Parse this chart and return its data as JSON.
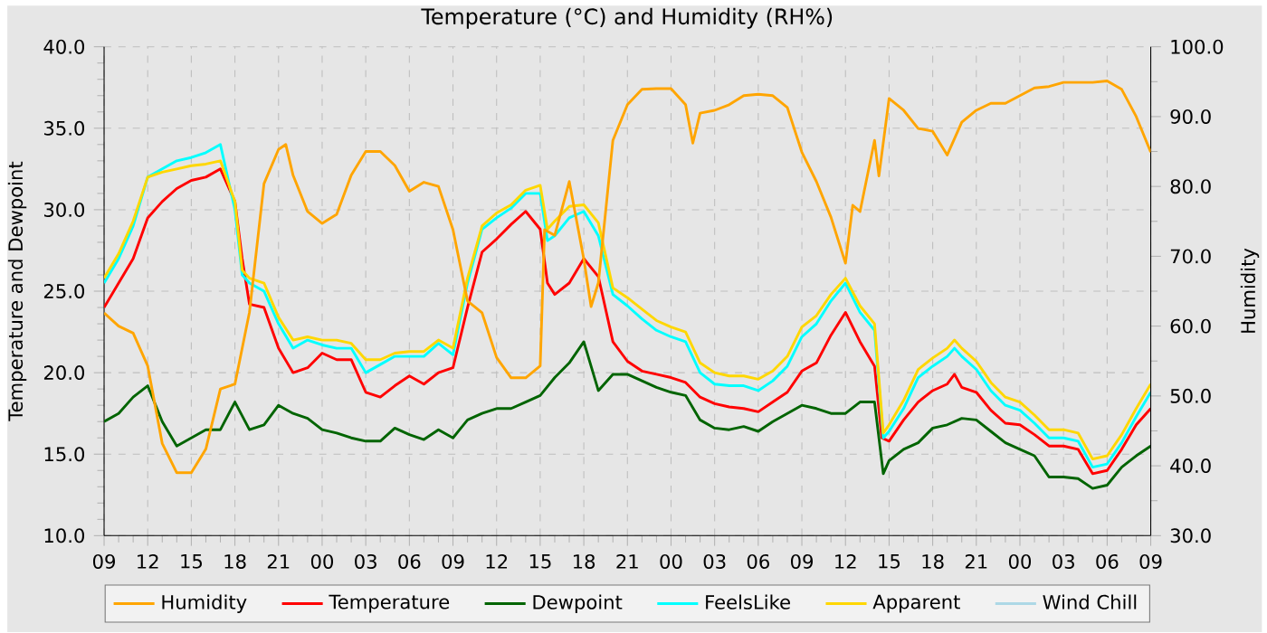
{
  "chart_data": {
    "type": "line",
    "title": "Temperature (°C) and Humidity (RH%)",
    "ylabel": "Temperature and Dewpoint",
    "y2label": "Humidity",
    "xlim": [
      9,
      81
    ],
    "xticks": [
      {
        "value": 9,
        "label": "09"
      },
      {
        "value": 12,
        "label": "12"
      },
      {
        "value": 15,
        "label": "15"
      },
      {
        "value": 18,
        "label": "18"
      },
      {
        "value": 21,
        "label": "21"
      },
      {
        "value": 24,
        "label": "00"
      },
      {
        "value": 27,
        "label": "03"
      },
      {
        "value": 30,
        "label": "06"
      },
      {
        "value": 33,
        "label": "09"
      },
      {
        "value": 36,
        "label": "12"
      },
      {
        "value": 39,
        "label": "15"
      },
      {
        "value": 42,
        "label": "18"
      },
      {
        "value": 45,
        "label": "21"
      },
      {
        "value": 48,
        "label": "00"
      },
      {
        "value": 51,
        "label": "03"
      },
      {
        "value": 54,
        "label": "06"
      },
      {
        "value": 57,
        "label": "09"
      },
      {
        "value": 60,
        "label": "12"
      },
      {
        "value": 63,
        "label": "15"
      },
      {
        "value": 66,
        "label": "18"
      },
      {
        "value": 69,
        "label": "21"
      },
      {
        "value": 72,
        "label": "00"
      },
      {
        "value": 75,
        "label": "03"
      },
      {
        "value": 78,
        "label": "06"
      },
      {
        "value": 81,
        "label": "09"
      }
    ],
    "ylim": [
      10,
      40
    ],
    "yticks": [
      {
        "value": 10,
        "label": "10.0"
      },
      {
        "value": 15,
        "label": "15.0"
      },
      {
        "value": 20,
        "label": "20.0"
      },
      {
        "value": 25,
        "label": "25.0"
      },
      {
        "value": 30,
        "label": "30.0"
      },
      {
        "value": 35,
        "label": "35.0"
      },
      {
        "value": 40,
        "label": "40.0"
      }
    ],
    "y2lim": [
      30,
      100
    ],
    "y2ticks": [
      {
        "value": 30,
        "label": "30.0"
      },
      {
        "value": 40,
        "label": "40.0"
      },
      {
        "value": 50,
        "label": "50.0"
      },
      {
        "value": 60,
        "label": "60.0"
      },
      {
        "value": 70,
        "label": "70.0"
      },
      {
        "value": 80,
        "label": "80.0"
      },
      {
        "value": 90,
        "label": "90.0"
      },
      {
        "value": 100,
        "label": "100.0"
      }
    ],
    "grid": true,
    "legend": "bottom",
    "series": [
      {
        "name": "Humidity",
        "color": "#ffa500",
        "axis": "y2",
        "x": [
          9,
          10,
          11,
          12,
          13,
          14,
          15,
          16,
          17,
          18,
          19,
          20,
          21,
          21.5,
          22,
          23,
          24,
          25,
          26,
          27,
          28,
          29,
          30,
          31,
          32,
          33,
          34,
          35,
          36,
          37,
          38,
          39,
          39.3,
          40,
          41,
          42,
          42.5,
          43,
          44,
          45,
          46,
          47,
          48,
          49,
          49.5,
          50,
          51,
          52,
          53,
          54,
          55,
          56,
          57,
          58,
          59,
          60,
          60.5,
          61,
          62,
          62.3,
          63,
          64,
          65,
          66,
          67,
          68,
          69,
          70,
          71,
          72,
          73,
          74,
          75,
          76,
          77,
          78,
          79,
          80,
          81
        ],
        "values": [
          61.9,
          60,
          59,
          54.3,
          43.2,
          39,
          39,
          42.4,
          51,
          51.7,
          62,
          80.4,
          85.3,
          86,
          81.6,
          76.4,
          74.7,
          76,
          81.6,
          85,
          85,
          83,
          79.3,
          80.6,
          80,
          73.8,
          63.6,
          61.9,
          55.5,
          52.6,
          52.6,
          54.3,
          73.8,
          73,
          80.7,
          69.6,
          62.8,
          66.2,
          86.6,
          91.7,
          93.9,
          94,
          94,
          91.7,
          86.2,
          90.5,
          90.9,
          91.7,
          93,
          93.2,
          93,
          91.3,
          84.9,
          80.7,
          75.6,
          69,
          77.3,
          76.4,
          86.6,
          81.5,
          92.6,
          90.9,
          88.3,
          87.9,
          84.5,
          89.2,
          90.9,
          91.9,
          91.9,
          93,
          94.1,
          94.3,
          94.9,
          94.9,
          94.9,
          95.1,
          93.9,
          90,
          84.9
        ]
      },
      {
        "name": "Temperature",
        "color": "#ff0000",
        "x": [
          9,
          10,
          11,
          12,
          13,
          14,
          15,
          16,
          17,
          18,
          18.5,
          19,
          20,
          21,
          22,
          23,
          24,
          25,
          26,
          27,
          28,
          29,
          30,
          31,
          32,
          33,
          34,
          35,
          36,
          37,
          38,
          39,
          39.5,
          40,
          41,
          42,
          43,
          44,
          45,
          46,
          47,
          48,
          49,
          50,
          51,
          52,
          53,
          54,
          55,
          56,
          57,
          58,
          59,
          60,
          61,
          62,
          62.5,
          63,
          64,
          65,
          66,
          67,
          67.5,
          68,
          69,
          70,
          71,
          72,
          73,
          74,
          75,
          76,
          77,
          78,
          79,
          80,
          81
        ],
        "values": [
          24,
          25.5,
          27,
          29.5,
          30.5,
          31.3,
          31.8,
          32,
          32.5,
          30.5,
          27,
          24.2,
          24,
          21.5,
          20,
          20.3,
          21.2,
          20.8,
          20.8,
          18.8,
          18.5,
          19.2,
          19.8,
          19.3,
          20,
          20.3,
          24,
          27.4,
          28.2,
          29.1,
          29.9,
          28.8,
          25.5,
          24.8,
          25.5,
          27,
          25.9,
          21.9,
          20.7,
          20.1,
          19.9,
          19.7,
          19.4,
          18.5,
          18.1,
          17.9,
          17.8,
          17.6,
          18.2,
          18.8,
          20.1,
          20.6,
          22.3,
          23.7,
          21.9,
          20.4,
          16,
          15.8,
          17.1,
          18.2,
          18.9,
          19.3,
          19.9,
          19.1,
          18.8,
          17.7,
          16.9,
          16.8,
          16.2,
          15.5,
          15.5,
          15.3,
          13.8,
          14,
          15.3,
          16.8,
          17.8
        ]
      },
      {
        "name": "Dewpoint",
        "color": "#006400",
        "x": [
          9,
          10,
          11,
          12,
          13,
          14,
          15,
          16,
          17,
          18,
          19,
          20,
          21,
          22,
          23,
          24,
          25,
          26,
          27,
          28,
          29,
          30,
          31,
          32,
          33,
          34,
          35,
          36,
          37,
          38,
          39,
          40,
          41,
          42,
          43,
          44,
          45,
          46,
          47,
          48,
          49,
          50,
          51,
          52,
          53,
          54,
          55,
          56,
          57,
          58,
          59,
          60,
          61,
          62,
          62.6,
          63,
          64,
          65,
          66,
          67,
          68,
          69,
          70,
          71,
          72,
          73,
          74,
          75,
          76,
          77,
          78,
          79,
          80,
          81
        ],
        "values": [
          17,
          17.5,
          18.5,
          19.2,
          17,
          15.5,
          16,
          16.5,
          16.5,
          18.2,
          16.5,
          16.8,
          18,
          17.5,
          17.2,
          16.5,
          16.3,
          16,
          15.8,
          15.8,
          16.6,
          16.2,
          15.9,
          16.5,
          16,
          17.1,
          17.5,
          17.8,
          17.8,
          18.2,
          18.6,
          19.7,
          20.6,
          21.9,
          18.9,
          19.9,
          19.9,
          19.5,
          19.1,
          18.8,
          18.6,
          17.1,
          16.6,
          16.5,
          16.7,
          16.4,
          17,
          17.5,
          18,
          17.8,
          17.5,
          17.5,
          18.2,
          18.2,
          13.8,
          14.6,
          15.3,
          15.7,
          16.6,
          16.8,
          17.2,
          17.1,
          16.4,
          15.7,
          15.3,
          14.9,
          13.6,
          13.6,
          13.5,
          12.9,
          13.1,
          14.2,
          14.9,
          15.5
        ]
      },
      {
        "name": "FeelsLike",
        "color": "#00ffff",
        "x": [
          9,
          10,
          11,
          12,
          13,
          14,
          15,
          16,
          17,
          18,
          18.5,
          19,
          20,
          21,
          22,
          23,
          24,
          25,
          26,
          27,
          28,
          29,
          30,
          31,
          32,
          33,
          34,
          35,
          36,
          37,
          38,
          39,
          39.5,
          40,
          41,
          42,
          43,
          44,
          45,
          46,
          47,
          48,
          49,
          50,
          51,
          52,
          53,
          54,
          55,
          56,
          57,
          58,
          59,
          60,
          61,
          62,
          62.6,
          63,
          64,
          65,
          66,
          67,
          67.5,
          68,
          69,
          70,
          71,
          72,
          73,
          74,
          75,
          76,
          77,
          78,
          79,
          80,
          81
        ],
        "values": [
          25.5,
          27,
          29,
          32,
          32.5,
          33,
          33.2,
          33.5,
          34,
          30,
          26,
          25.5,
          25,
          23,
          21.5,
          22,
          21.7,
          21.5,
          21.5,
          20,
          20.5,
          21,
          21,
          21,
          21.8,
          21.1,
          25.5,
          28.8,
          29.5,
          30.1,
          31,
          31,
          28.1,
          28.4,
          29.5,
          29.9,
          28.4,
          24.8,
          24.1,
          23.3,
          22.6,
          22.2,
          21.9,
          20,
          19.3,
          19.2,
          19.2,
          18.9,
          19.5,
          20.4,
          22.2,
          23,
          24.4,
          25.5,
          23.7,
          22.6,
          16,
          16.4,
          17.8,
          19.7,
          20.4,
          21,
          21.5,
          21,
          20.2,
          18.9,
          18,
          17.7,
          16.9,
          16,
          16,
          15.8,
          14.2,
          14.4,
          15.7,
          17.3,
          18.8
        ]
      },
      {
        "name": "Apparent",
        "color": "#ffd700",
        "x": [
          9,
          10,
          11,
          12,
          13,
          14,
          15,
          16,
          17,
          18,
          18.5,
          19,
          20,
          21,
          22,
          23,
          24,
          25,
          26,
          27,
          28,
          29,
          30,
          31,
          32,
          33,
          34,
          35,
          36,
          37,
          38,
          39,
          39.5,
          40,
          41,
          42,
          43,
          44,
          45,
          46,
          47,
          48,
          49,
          50,
          51,
          52,
          53,
          54,
          55,
          56,
          57,
          58,
          59,
          60,
          61,
          62,
          62.6,
          63,
          64,
          65,
          66,
          67,
          67.5,
          68,
          69,
          70,
          71,
          72,
          73,
          74,
          75,
          76,
          77,
          78,
          79,
          80,
          81
        ],
        "values": [
          25.8,
          27.3,
          29.3,
          32,
          32.3,
          32.5,
          32.7,
          32.8,
          33,
          30.5,
          26.3,
          25.8,
          25.5,
          23.4,
          22,
          22.2,
          22,
          22,
          21.8,
          20.8,
          20.8,
          21.2,
          21.3,
          21.3,
          22,
          21.5,
          25.8,
          29,
          29.8,
          30.3,
          31.2,
          31.5,
          28.8,
          29.3,
          30.2,
          30.3,
          29.2,
          25.2,
          24.6,
          23.9,
          23.2,
          22.8,
          22.5,
          20.6,
          20,
          19.8,
          19.8,
          19.6,
          20.1,
          21,
          22.8,
          23.5,
          24.8,
          25.8,
          24.1,
          23,
          16.3,
          16.8,
          18.3,
          20.2,
          20.9,
          21.5,
          22,
          21.5,
          20.7,
          19.4,
          18.5,
          18.2,
          17.4,
          16.5,
          16.5,
          16.3,
          14.7,
          14.9,
          16.2,
          17.8,
          19.3
        ]
      },
      {
        "name": "Wind Chill",
        "color": "#add8e6"
      }
    ]
  }
}
